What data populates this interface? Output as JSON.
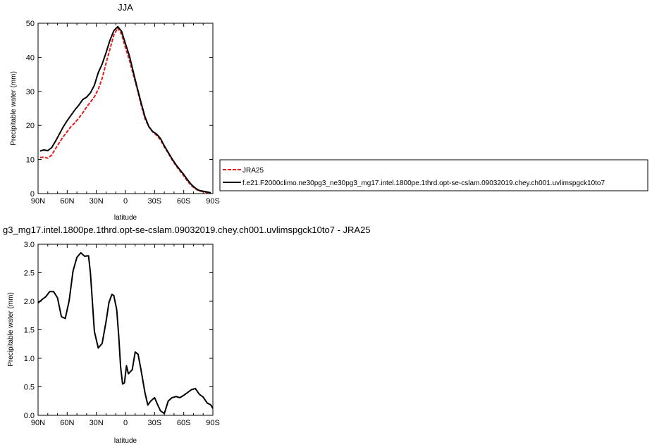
{
  "chart_data": [
    {
      "type": "line",
      "title": "JJA",
      "xlabel": "latitude",
      "ylabel": "Precipitable water (mm)",
      "xlim": [
        90,
        -90
      ],
      "ylim": [
        0,
        50
      ],
      "x_ticks": [
        90,
        60,
        30,
        0,
        -30,
        -60,
        -90
      ],
      "x_tick_labels": [
        "90N",
        "60N",
        "30N",
        "0",
        "30S",
        "60S",
        "90S"
      ],
      "y_ticks": [
        0,
        10,
        20,
        30,
        40,
        50
      ],
      "y_tick_labels": [
        "0",
        "10",
        "20",
        "30",
        "40",
        "50"
      ],
      "legend_placement": "right",
      "series": [
        {
          "name": "JRA25",
          "color": "#e41a1c",
          "style": "dashed",
          "x": [
            88,
            84,
            80,
            76,
            72,
            68,
            64,
            60,
            56,
            52,
            48,
            44,
            40,
            36,
            32,
            28,
            24,
            20,
            16,
            12,
            8,
            4,
            0,
            -4,
            -8,
            -12,
            -16,
            -20,
            -24,
            -28,
            -32,
            -36,
            -40,
            -44,
            -48,
            -52,
            -56,
            -60,
            -64,
            -68,
            -72,
            -76,
            -80,
            -84,
            -88
          ],
          "values": [
            10.6,
            10.7,
            10.4,
            11.3,
            13.2,
            15.0,
            16.7,
            18.2,
            19.7,
            20.8,
            22.2,
            23.7,
            25.4,
            26.9,
            28.4,
            30.6,
            33.8,
            38.2,
            42.4,
            46.5,
            48.6,
            46.8,
            42.8,
            39.2,
            35.0,
            30.8,
            26.2,
            22.0,
            19.6,
            18.1,
            17.1,
            15.8,
            13.7,
            11.9,
            9.9,
            8.2,
            6.7,
            5.2,
            3.6,
            2.3,
            1.4,
            0.8,
            0.6,
            0.3,
            0.1
          ]
        },
        {
          "name": "f.e21.F2000climo.ne30pg3_ne30pg3_mg17.intel.1800pe.1thrd.opt-se-cslam.09032019.chey.ch001.uvlimspgck10to7",
          "color": "#000000",
          "style": "solid",
          "x": [
            88,
            84,
            80,
            76,
            72,
            68,
            64,
            60,
            56,
            52,
            48,
            44,
            40,
            36,
            32,
            28,
            24,
            20,
            16,
            12,
            8,
            4,
            0,
            -4,
            -8,
            -12,
            -16,
            -20,
            -24,
            -28,
            -32,
            -36,
            -40,
            -44,
            -48,
            -52,
            -56,
            -60,
            -64,
            -68,
            -72,
            -76,
            -80,
            -84,
            -88
          ],
          "values": [
            12.5,
            12.8,
            12.6,
            13.5,
            15.4,
            17.5,
            19.6,
            21.4,
            23.0,
            24.6,
            26.0,
            27.6,
            28.3,
            29.6,
            31.8,
            35.5,
            38.0,
            41.3,
            45.0,
            47.8,
            49.0,
            47.6,
            44.0,
            40.5,
            35.8,
            31.2,
            26.8,
            22.6,
            19.7,
            18.2,
            17.5,
            16.2,
            14.0,
            12.1,
            10.2,
            8.5,
            7.0,
            5.6,
            4.0,
            2.6,
            1.6,
            0.9,
            0.7,
            0.5,
            0.2
          ]
        }
      ]
    },
    {
      "type": "line",
      "title": "g3_mg17.intel.1800pe.1thrd.opt-se-cslam.09032019.chey.ch001.uvlimspgck10to7 - JRA25",
      "xlabel": "latitude",
      "ylabel": "Precipitable water (mm)",
      "xlim": [
        90,
        -90
      ],
      "ylim": [
        0,
        3.0
      ],
      "x_ticks": [
        90,
        60,
        30,
        0,
        -30,
        -60,
        -90
      ],
      "x_tick_labels": [
        "90N",
        "60N",
        "30N",
        "0",
        "30S",
        "60S",
        "90S"
      ],
      "y_ticks": [
        0,
        0.5,
        1.0,
        1.5,
        2.0,
        2.5,
        3.0
      ],
      "y_tick_labels": [
        "0.0",
        "0.5",
        "1.0",
        "1.5",
        "2.0",
        "2.5",
        "3.0"
      ],
      "series": [
        {
          "color": "#000000",
          "style": "solid",
          "x": [
            90,
            86,
            82,
            78,
            74,
            70,
            66,
            62,
            58,
            54,
            50,
            46,
            42,
            38,
            36,
            32,
            28,
            24,
            20,
            17,
            14,
            12,
            9,
            7,
            5,
            3,
            1,
            -1,
            -3,
            -7,
            -10,
            -13,
            -16,
            -20,
            -23,
            -26,
            -30,
            -33,
            -36,
            -40,
            -44,
            -48,
            -52,
            -56,
            -60,
            -64,
            -68,
            -72,
            -76,
            -80,
            -84,
            -88,
            -90
          ],
          "values": [
            1.97,
            2.03,
            2.08,
            2.17,
            2.17,
            2.06,
            1.73,
            1.7,
            2.01,
            2.53,
            2.77,
            2.85,
            2.79,
            2.8,
            2.48,
            1.47,
            1.18,
            1.26,
            1.64,
            1.98,
            2.12,
            2.1,
            1.85,
            1.4,
            0.85,
            0.55,
            0.57,
            0.87,
            0.73,
            0.8,
            1.11,
            1.07,
            0.8,
            0.4,
            0.18,
            0.25,
            0.31,
            0.19,
            0.08,
            0.03,
            0.25,
            0.31,
            0.33,
            0.31,
            0.35,
            0.4,
            0.45,
            0.47,
            0.37,
            0.32,
            0.22,
            0.18,
            0.12
          ]
        }
      ]
    }
  ]
}
